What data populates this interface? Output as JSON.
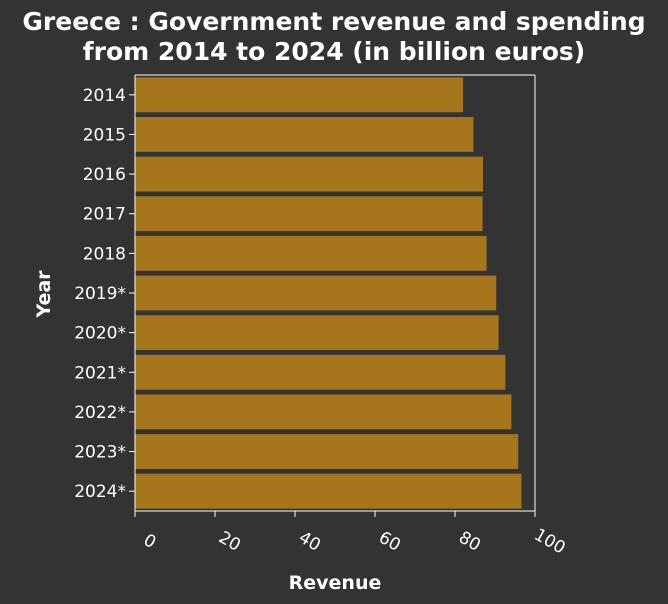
{
  "chart_data": {
    "type": "bar",
    "orientation": "horizontal",
    "title": "Greece : Government revenue and spending from 2014 to 2024 (in billion euros)",
    "title_lines": [
      "Greece : Government revenue and spending",
      "from 2014 to 2024 (in billion euros)"
    ],
    "xlabel": "Revenue",
    "ylabel": "Year",
    "categories": [
      "2014",
      "2015",
      "2016",
      "2017",
      "2018",
      "2019*",
      "2020*",
      "2021*",
      "2022*",
      "2023*",
      "2024*"
    ],
    "values": [
      82.0,
      84.6,
      87.0,
      86.9,
      87.9,
      90.3,
      90.9,
      92.6,
      94.1,
      95.8,
      96.6
    ],
    "xlim": [
      0,
      100
    ],
    "xticks": [
      "0",
      "20",
      "40",
      "60",
      "80",
      "100"
    ],
    "grid": false,
    "bar_color": "#a5761b",
    "background_color": "#333333"
  }
}
